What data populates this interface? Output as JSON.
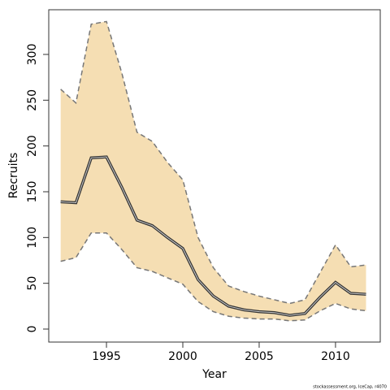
{
  "chart_data": {
    "type": "line",
    "x_label": "Year",
    "y_label": "Recruits",
    "caption": "stockassessment.org, IceCap, r4070",
    "x": [
      1992,
      1993,
      1994,
      1995,
      1996,
      1997,
      1998,
      1999,
      2000,
      2001,
      2002,
      2003,
      2004,
      2005,
      2006,
      2007,
      2008,
      2009,
      2010,
      2011,
      2012
    ],
    "values": [
      139,
      138,
      187,
      188,
      155,
      119,
      113,
      100,
      88,
      54,
      36,
      25,
      21,
      19,
      18,
      15,
      17,
      35,
      51,
      39,
      38
    ],
    "upper": [
      262,
      247,
      333,
      336,
      280,
      215,
      205,
      182,
      163,
      100,
      67,
      47,
      41,
      36,
      32,
      28,
      32,
      62,
      92,
      68,
      70
    ],
    "lower": [
      74,
      78,
      105,
      105,
      87,
      67,
      63,
      56,
      49,
      30,
      19,
      14,
      12,
      11,
      11,
      9,
      10,
      20,
      28,
      22,
      20
    ],
    "color": "#333333",
    "band_color": "#f5deb3",
    "bound_color": "#777777",
    "xlim": [
      1991.22,
      2012.93
    ],
    "ylim": [
      -14.2,
      348.8
    ],
    "xticks": [
      1995,
      2000,
      2005,
      2010
    ],
    "yticks": [
      0,
      50,
      100,
      150,
      200,
      250,
      300
    ]
  }
}
